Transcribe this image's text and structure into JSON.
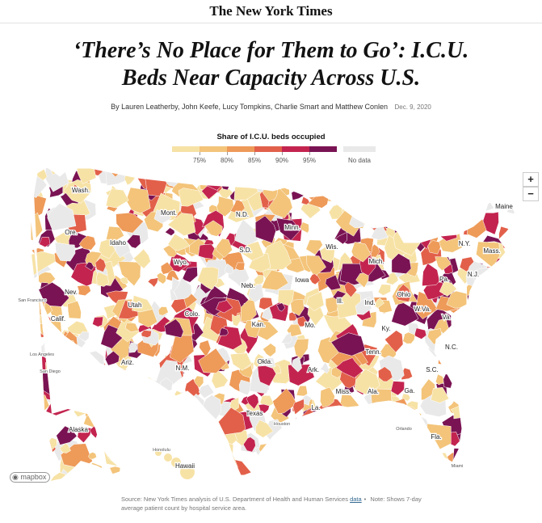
{
  "masthead": "The New York Times",
  "headline": "‘There’s No Place for Them to Go’: I.C.U. Beds Near Capacity Across U.S.",
  "byline": "By Lauren Leatherby, John Keefe, Lucy Tompkins, Charlie Smart and Matthew Conlen",
  "date": "Dec. 9, 2020",
  "legend": {
    "title": "Share of I.C.U. beds occupied",
    "bins": [
      {
        "color": "#f7e2a6"
      },
      {
        "color": "#f3c47a"
      },
      {
        "color": "#ee9a59"
      },
      {
        "color": "#e2604a"
      },
      {
        "color": "#c3244f"
      },
      {
        "color": "#7a1353"
      }
    ],
    "nodata_color": "#e9e9e9",
    "tick_labels": [
      "75%",
      "80%",
      "85%",
      "90%",
      "95%"
    ],
    "nodata_label": "No data"
  },
  "map_labels": {
    "states": [
      "Wash.",
      "Mont.",
      "N.D.",
      "Minn.",
      "Ore.",
      "Idaho",
      "S.D.",
      "Wis.",
      "Mich.",
      "N.Y.",
      "Maine",
      "Mass.",
      "Pa.",
      "N.J.",
      "Wyo.",
      "Neb.",
      "Iowa",
      "Nev.",
      "Utah",
      "Ill.",
      "Ind.",
      "Ohio",
      "W.Va.",
      "Va.",
      "Colo.",
      "Kan.",
      "Mo.",
      "Ky.",
      "Calif.",
      "Okla.",
      "Tenn.",
      "N.C.",
      "Ariz.",
      "N.M.",
      "Ark.",
      "S.C.",
      "Miss.",
      "Ala.",
      "Ga.",
      "Texas",
      "La.",
      "Fla.",
      "Alaska",
      "Hawaii"
    ],
    "cities": [
      "San Francisco",
      "Los Angeles",
      "San Diego",
      "Houston",
      "Honolulu",
      "Orlando",
      "Miami"
    ]
  },
  "controls": {
    "zoom_in": "+",
    "zoom_out": "−"
  },
  "attribution": "mapbox",
  "source": {
    "text": "Source: New York Times analysis of U.S. Department of Health and Human Services",
    "link": "data",
    "note": "Note: Shows 7-day average patient count by hospital service area."
  }
}
